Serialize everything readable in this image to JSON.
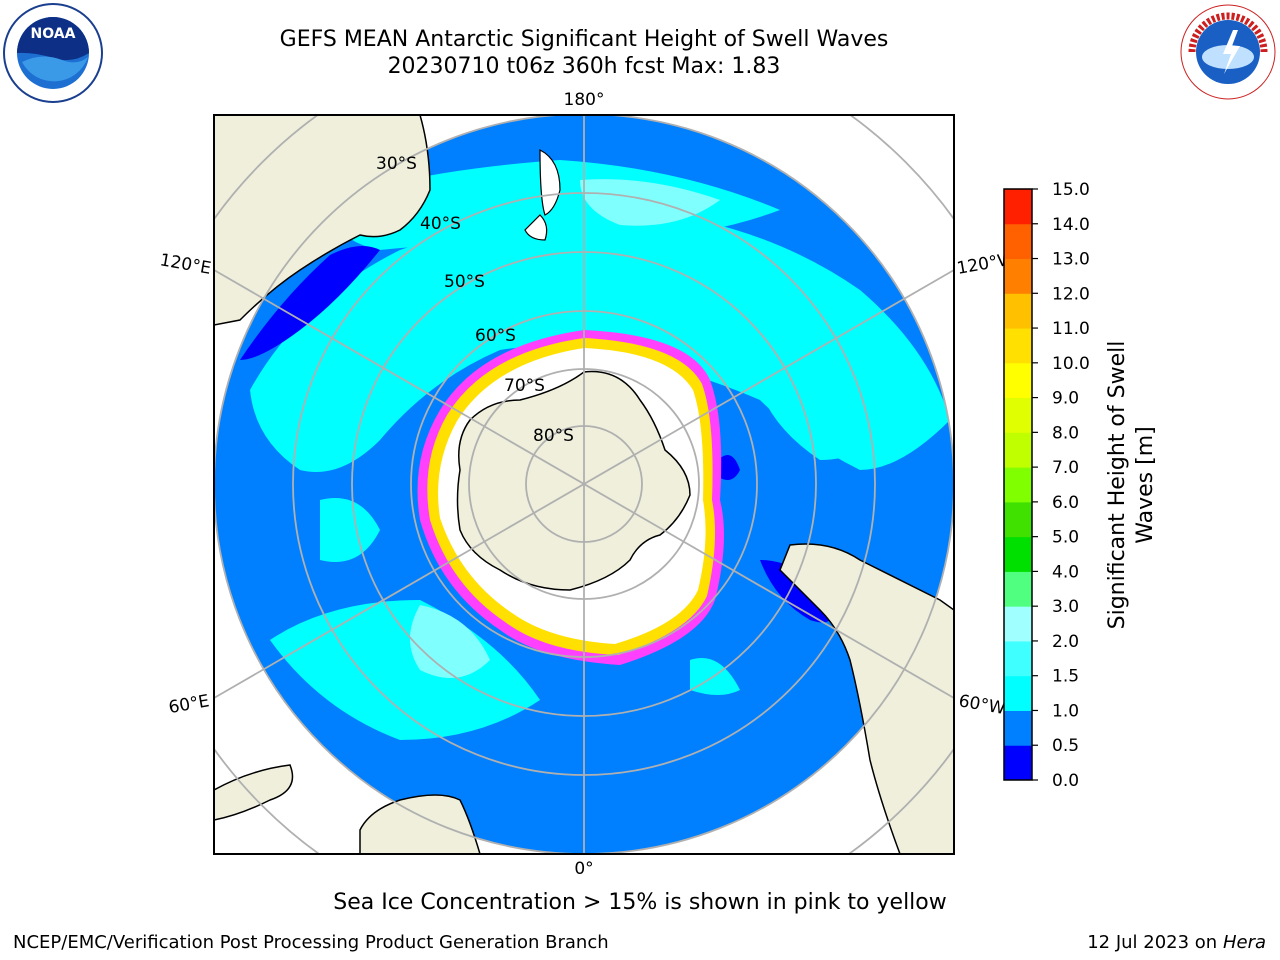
{
  "header": {
    "title_line1": "GEFS MEAN Antarctic Significant Height of Swell Waves",
    "title_line2": "20230710 t06z 360h fcst   Max: 1.83"
  },
  "logos": {
    "left": {
      "name": "noara-logo",
      "text": "NOAA"
    },
    "right": {
      "name": "nws-logo",
      "text": "NATIONAL WEATHER SERVICE"
    }
  },
  "map": {
    "longitude_labels": [
      "180°",
      "120°E",
      "120°W",
      "60°E",
      "60°W",
      "0°"
    ],
    "latitude_labels": [
      "30°S",
      "40°S",
      "50°S",
      "60°S",
      "70°S",
      "80°S"
    ],
    "colors": {
      "land": "#efefdc",
      "swell_0_0p5": "#0000ff",
      "swell_0p5_1": "#0080ff",
      "swell_1_1p5": "#00ffff",
      "swell_1p5_2": "#80ffff",
      "ice_edge": "#ff40ff",
      "ice_core": "#ffffff",
      "grid": "#b0b0b0"
    }
  },
  "colorbar": {
    "label_line1": "Significant Height of Swell",
    "label_line2": "Waves [m]",
    "ticks": [
      "0.0",
      "0.5",
      "1.0",
      "1.5",
      "2.0",
      "3.0",
      "4.0",
      "5.0",
      "6.0",
      "7.0",
      "8.0",
      "9.0",
      "10.0",
      "11.0",
      "12.0",
      "13.0",
      "14.0",
      "15.0"
    ],
    "colors": [
      "#0000ff",
      "#0080ff",
      "#00ffff",
      "#40ffff",
      "#a0ffff",
      "#50ff80",
      "#00e000",
      "#40e000",
      "#80ff00",
      "#c0ff00",
      "#e0ff00",
      "#ffff00",
      "#ffe000",
      "#ffc000",
      "#ff8000",
      "#ff6000",
      "#ff2000",
      "#ff0000"
    ]
  },
  "caption": "Sea Ice Concentration > 15% is shown in pink to yellow",
  "footer": {
    "left": "NCEP/EMC/Verification Post Processing Product Generation Branch",
    "right_prefix": "12 Jul 2023 on ",
    "right_italic": "Hera"
  }
}
